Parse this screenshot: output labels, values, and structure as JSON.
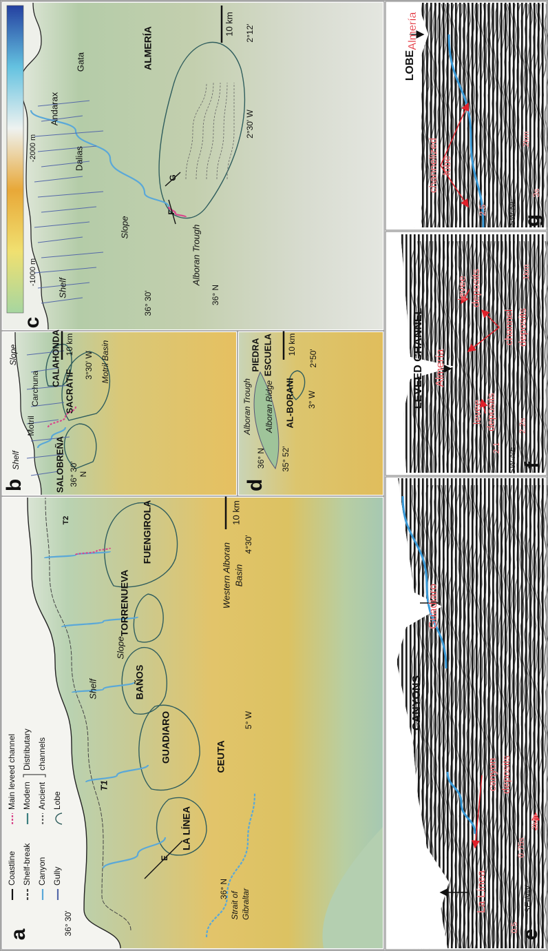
{
  "panels": [
    {
      "texts": [
        "a",
        "Coastline",
        "Shelf-break",
        "Canyon",
        "Gully",
        "Main leveed channel",
        "Modern",
        "Ancient",
        "Distributary",
        "channels",
        "Lobe",
        "36° 30'",
        "T1",
        "Shelf",
        "Slope",
        "T2",
        "E",
        "LA LÍNEA",
        "GUADIARO",
        "BAÑOS",
        "TORRENUEVA",
        "FUENGIROLA",
        "CEUTA",
        "36° N",
        "Strait of",
        "Gibraltar",
        "5° W",
        "4°30'",
        "Western Alboran",
        "Basin",
        "10 km"
      ]
    },
    {
      "texts": [
        "b",
        "Shelf",
        "Motril",
        "Carchuna",
        "Slope",
        "CALAHONDA",
        "SALOBREÑA",
        "SACRATIF",
        "Motril Basin",
        "36° 30'",
        "N",
        "3°30' W",
        "10 km"
      ]
    },
    {
      "texts": [
        "d",
        "36° N",
        "35° 52'",
        "Alboran Trough",
        "Alboran Ridge",
        "PIEDRA",
        "ESCUELA",
        "AL-BORANI",
        "3° W",
        "2°50'",
        "10 km"
      ]
    },
    {
      "texts": [
        "c",
        "Shelf",
        "Slope",
        "Dalias",
        "Andarax",
        "Gata",
        "ALMERÍA",
        "F",
        "G",
        "36° 30'",
        "36° N",
        "Alboran Trough",
        "2°30' W",
        "2°12'",
        "10 km",
        "-1000 m",
        "-2000 m"
      ]
    },
    {
      "texts": [
        "e",
        "SE-NW",
        "CANYONS",
        "La Línea",
        "Guadiaro",
        "canyon",
        "deposits",
        "0.5",
        "0.75s",
        "2km"
      ]
    },
    {
      "texts": [
        "f",
        "SW-NE",
        "LEVEED CHANNEL",
        "Almería",
        "levee",
        "deposits",
        "levee",
        "deposits",
        "channel",
        "deposits",
        "2.1",
        "2.2s",
        "1km"
      ]
    },
    {
      "texts": [
        "g",
        "SW-NE",
        "LOBE",
        "Almería",
        "channelized",
        "lobe",
        "2.5",
        "3s",
        "2km"
      ]
    }
  ]
}
